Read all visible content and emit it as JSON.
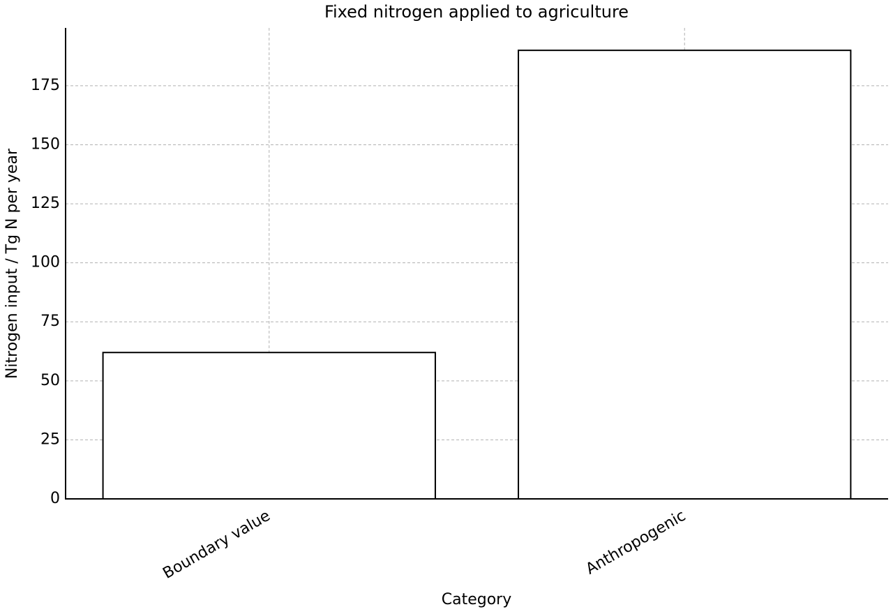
{
  "chart_data": {
    "type": "bar",
    "title": "Fixed nitrogen applied to agriculture",
    "x_label": "Category",
    "y_label": "Nitrogen input / Tg N per year",
    "categories": [
      "Boundary value",
      "Anthropogenic"
    ],
    "values": [
      62,
      190
    ],
    "color": "#ffffff",
    "edgecolor": "#000000",
    "ylim": [
      0,
      199.5
    ],
    "yticks": [
      0,
      25,
      50,
      75,
      100,
      125,
      150,
      175
    ],
    "grid": true
  }
}
